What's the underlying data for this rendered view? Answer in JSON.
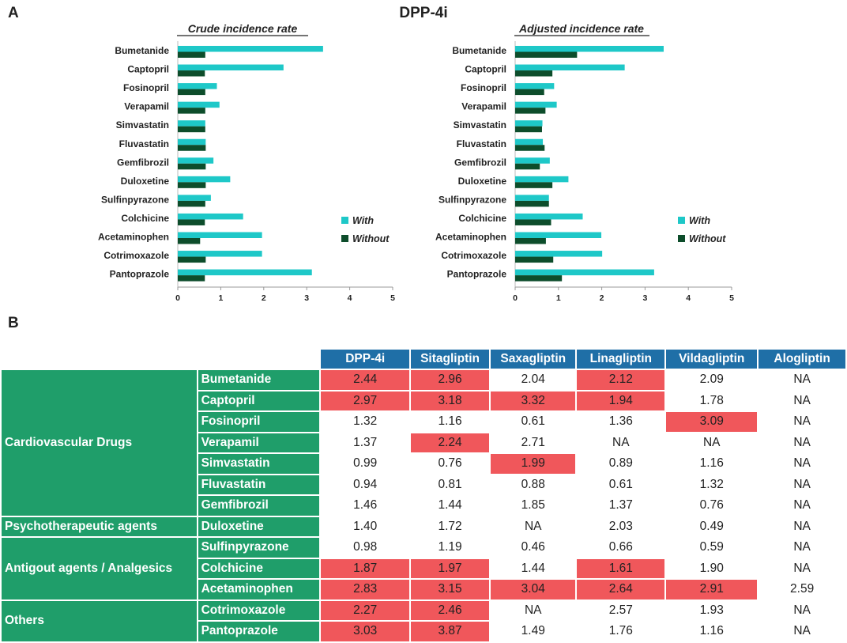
{
  "panel_a_label": "A",
  "panel_b_label": "B",
  "figure_title": "DPP-4i",
  "colors": {
    "with": "#1ec8c8",
    "without": "#0d4d2b",
    "header": "#1f6fa7",
    "green": "#1f9e6a",
    "highlight": "#f0575b"
  },
  "chart_data": [
    {
      "type": "bar",
      "orientation": "horizontal",
      "title": "Crude incidence rate",
      "categories": [
        "Bumetanide",
        "Captopril",
        "Fosinopril",
        "Verapamil",
        "Simvastatin",
        "Fluvastatin",
        "Gemfibrozil",
        "Duloxetine",
        "Sulfinpyrazone",
        "Colchicine",
        "Acetaminophen",
        "Cotrimoxazole",
        "Pantoprazole"
      ],
      "series": [
        {
          "name": "With",
          "values": [
            3.38,
            2.46,
            0.91,
            0.97,
            0.64,
            0.65,
            0.83,
            1.22,
            0.77,
            1.52,
            1.96,
            1.96,
            3.12
          ]
        },
        {
          "name": "Without",
          "values": [
            0.64,
            0.63,
            0.64,
            0.64,
            0.64,
            0.65,
            0.65,
            0.65,
            0.64,
            0.63,
            0.52,
            0.65,
            0.63
          ]
        }
      ],
      "xlim": [
        0,
        5
      ],
      "xticks": [
        "0",
        "1",
        "2",
        "3",
        "4",
        "5"
      ],
      "legend": [
        "With",
        "Without"
      ]
    },
    {
      "type": "bar",
      "orientation": "horizontal",
      "title": "Adjusted incidence rate",
      "categories": [
        "Bumetanide",
        "Captopril",
        "Fosinopril",
        "Verapamil",
        "Simvastatin",
        "Fluvastatin",
        "Gemfibrozil",
        "Duloxetine",
        "Sulfinpyrazone",
        "Colchicine",
        "Acetaminophen",
        "Cotrimoxazole",
        "Pantoprazole"
      ],
      "series": [
        {
          "name": "With",
          "values": [
            3.43,
            2.53,
            0.9,
            0.96,
            0.63,
            0.64,
            0.8,
            1.23,
            0.78,
            1.56,
            1.99,
            2.01,
            3.21
          ]
        },
        {
          "name": "Without",
          "values": [
            1.43,
            0.86,
            0.67,
            0.7,
            0.62,
            0.68,
            0.57,
            0.86,
            0.78,
            0.83,
            0.71,
            0.88,
            1.08
          ]
        }
      ],
      "xlim": [
        0,
        5
      ],
      "xticks": [
        "0",
        "1",
        "2",
        "3",
        "4",
        "5"
      ],
      "legend": [
        "With",
        "Without"
      ]
    }
  ],
  "table": {
    "headers": [
      "DPP-4i",
      "Sitagliptin",
      "Saxagliptin",
      "Linagliptin",
      "Vildagliptin",
      "Alogliptin"
    ],
    "groups": [
      {
        "name": "Cardiovascular Drugs",
        "rows": [
          {
            "drug": "Bumetanide",
            "values": [
              "2.44",
              "2.96",
              "2.04",
              "2.12",
              "2.09",
              "NA"
            ],
            "highlight": [
              true,
              true,
              false,
              true,
              false,
              false
            ]
          },
          {
            "drug": "Captopril",
            "values": [
              "2.97",
              "3.18",
              "3.32",
              "1.94",
              "1.78",
              "NA"
            ],
            "highlight": [
              true,
              true,
              true,
              true,
              false,
              false
            ]
          },
          {
            "drug": "Fosinopril",
            "values": [
              "1.32",
              "1.16",
              "0.61",
              "1.36",
              "3.09",
              "NA"
            ],
            "highlight": [
              false,
              false,
              false,
              false,
              true,
              false
            ]
          },
          {
            "drug": "Verapamil",
            "values": [
              "1.37",
              "2.24",
              "2.71",
              "NA",
              "NA",
              "NA"
            ],
            "highlight": [
              false,
              true,
              false,
              false,
              false,
              false
            ]
          },
          {
            "drug": "Simvastatin",
            "values": [
              "0.99",
              "0.76",
              "1.99",
              "0.89",
              "1.16",
              "NA"
            ],
            "highlight": [
              false,
              false,
              true,
              false,
              false,
              false
            ]
          },
          {
            "drug": "Fluvastatin",
            "values": [
              "0.94",
              "0.81",
              "0.88",
              "0.61",
              "1.32",
              "NA"
            ],
            "highlight": [
              false,
              false,
              false,
              false,
              false,
              false
            ]
          },
          {
            "drug": "Gemfibrozil",
            "values": [
              "1.46",
              "1.44",
              "1.85",
              "1.37",
              "0.76",
              "NA"
            ],
            "highlight": [
              false,
              false,
              false,
              false,
              false,
              false
            ]
          }
        ]
      },
      {
        "name": "Psychotherapeutic agents",
        "rows": [
          {
            "drug": "Duloxetine",
            "values": [
              "1.40",
              "1.72",
              "NA",
              "2.03",
              "0.49",
              "NA"
            ],
            "highlight": [
              false,
              false,
              false,
              false,
              false,
              false
            ]
          }
        ]
      },
      {
        "name": "Antigout agents / Analgesics",
        "rows": [
          {
            "drug": "Sulfinpyrazone",
            "values": [
              "0.98",
              "1.19",
              "0.46",
              "0.66",
              "0.59",
              "NA"
            ],
            "highlight": [
              false,
              false,
              false,
              false,
              false,
              false
            ]
          },
          {
            "drug": "Colchicine",
            "values": [
              "1.87",
              "1.97",
              "1.44",
              "1.61",
              "1.90",
              "NA"
            ],
            "highlight": [
              true,
              true,
              false,
              true,
              false,
              false
            ]
          },
          {
            "drug": "Acetaminophen",
            "values": [
              "2.83",
              "3.15",
              "3.04",
              "2.64",
              "2.91",
              "2.59"
            ],
            "highlight": [
              true,
              true,
              true,
              true,
              true,
              false
            ]
          }
        ]
      },
      {
        "name": "Others",
        "rows": [
          {
            "drug": "Cotrimoxazole",
            "values": [
              "2.27",
              "2.46",
              "NA",
              "2.57",
              "1.93",
              "NA"
            ],
            "highlight": [
              true,
              true,
              false,
              false,
              false,
              false
            ]
          },
          {
            "drug": "Pantoprazole",
            "values": [
              "3.03",
              "3.87",
              "1.49",
              "1.76",
              "1.16",
              "NA"
            ],
            "highlight": [
              true,
              true,
              false,
              false,
              false,
              false
            ]
          }
        ]
      }
    ]
  }
}
